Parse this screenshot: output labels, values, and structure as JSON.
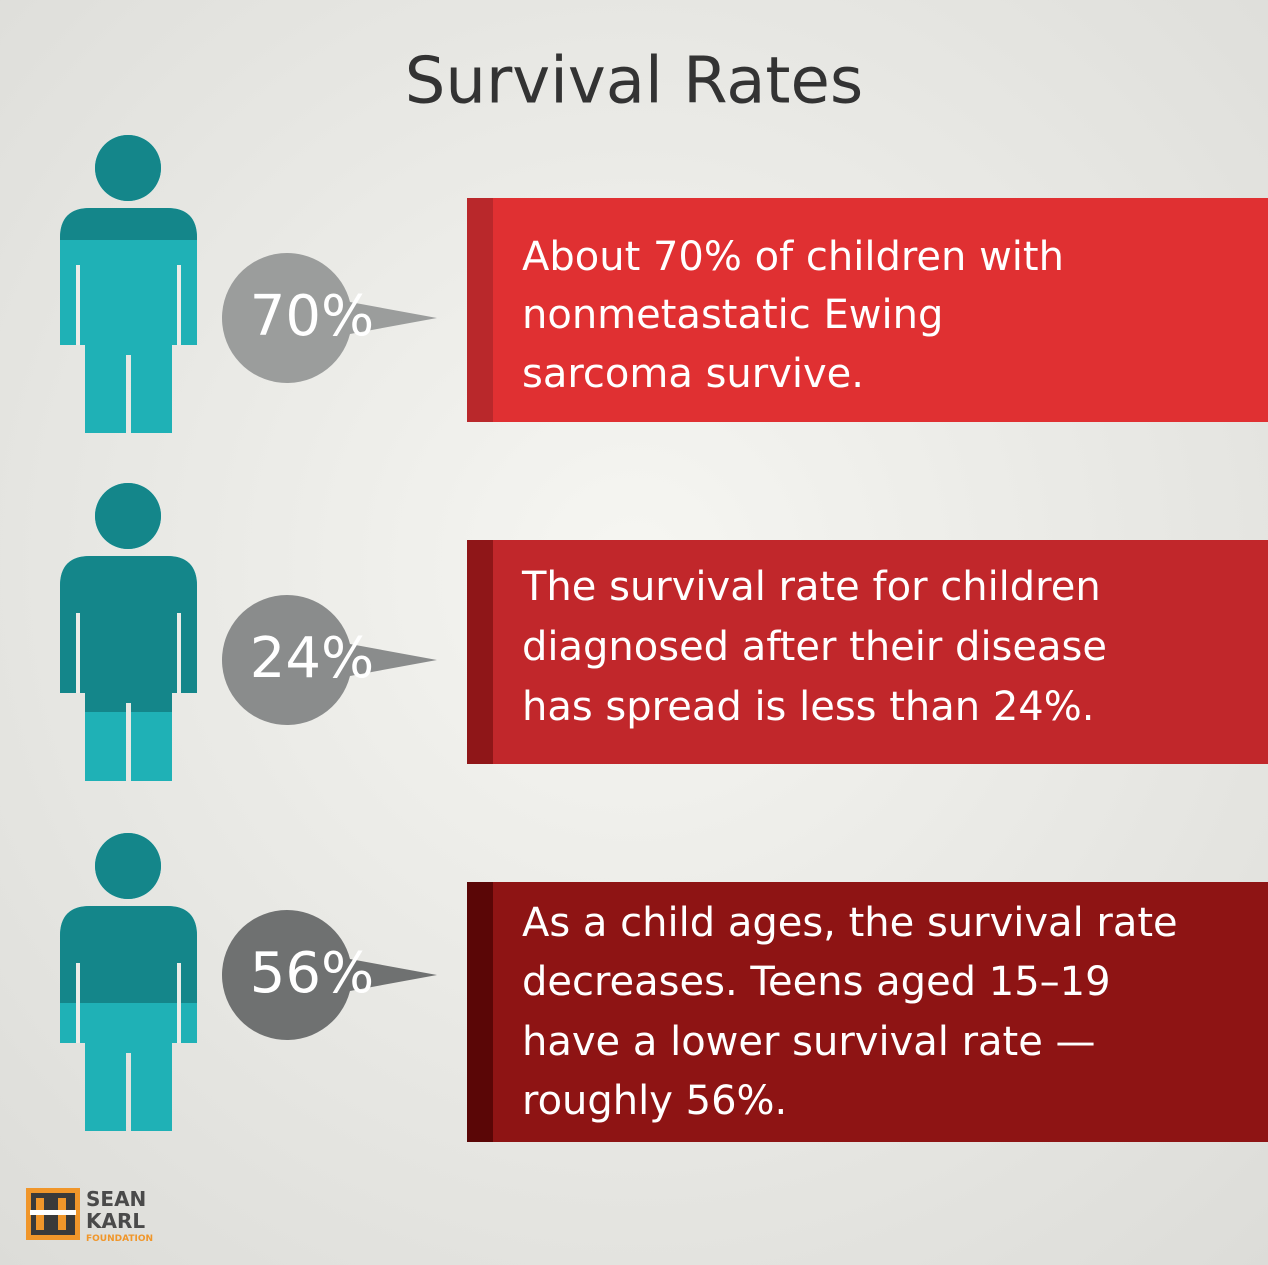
{
  "title": "Survival Rates",
  "items": [
    {
      "percent": "70%",
      "lines": [
        "About 70% of children with",
        "nonmetastatic Ewing",
        "sarcoma survive."
      ]
    },
    {
      "percent": "24%",
      "lines": [
        "The survival rate for children",
        "diagnosed after their disease",
        "has spread is less than 24%."
      ]
    },
    {
      "percent": "56%",
      "lines": [
        "As a child ages, the survival rate",
        "decreases. Teens aged 15–19",
        "have a lower survival rate —",
        "roughly 56%."
      ]
    }
  ],
  "logo": {
    "line1": "SEAN",
    "line2": "KARL",
    "line3": "FOUNDATION"
  }
}
